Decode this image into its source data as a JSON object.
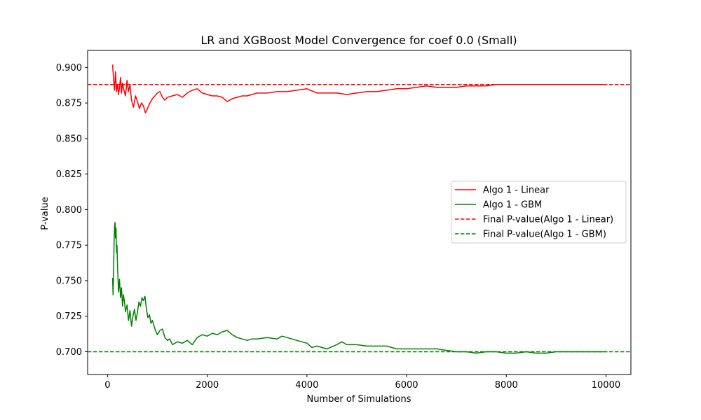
{
  "chart_data": {
    "type": "line",
    "title": "LR and XGBoost Model Convergence for coef 0.0 (Small)",
    "xlabel": "Number of Simulations",
    "ylabel": "P-value",
    "xlim": [
      -400,
      10500
    ],
    "ylim": [
      0.684,
      0.912
    ],
    "xticks": [
      0,
      2000,
      4000,
      6000,
      8000,
      10000
    ],
    "xtick_labels": [
      "0",
      "2000",
      "4000",
      "6000",
      "8000",
      "10000"
    ],
    "yticks": [
      0.7,
      0.725,
      0.75,
      0.775,
      0.8,
      0.825,
      0.85,
      0.875,
      0.9
    ],
    "ytick_labels": [
      "0.700",
      "0.725",
      "0.750",
      "0.775",
      "0.800",
      "0.825",
      "0.850",
      "0.875",
      "0.900"
    ],
    "grid": false,
    "legend_position": "center-right",
    "series": [
      {
        "name": "Algo 1 - Linear",
        "style": "solid",
        "color": "#ff0000",
        "x": [
          100,
          120,
          140,
          160,
          180,
          200,
          220,
          240,
          260,
          280,
          300,
          330,
          360,
          390,
          420,
          450,
          480,
          520,
          560,
          600,
          640,
          680,
          720,
          760,
          800,
          850,
          900,
          950,
          1000,
          1050,
          1100,
          1150,
          1200,
          1300,
          1400,
          1500,
          1600,
          1700,
          1800,
          1900,
          2000,
          2100,
          2200,
          2300,
          2400,
          2500,
          2600,
          2700,
          2800,
          2900,
          3000,
          3200,
          3400,
          3600,
          3800,
          4000,
          4200,
          4400,
          4600,
          4800,
          5000,
          5200,
          5400,
          5600,
          5800,
          6000,
          6200,
          6400,
          6600,
          6800,
          7000,
          7200,
          7400,
          7600,
          7800,
          8000,
          8200,
          8400,
          8600,
          8800,
          9000,
          9200,
          9400,
          9600,
          9800,
          10000
        ],
        "y": [
          0.902,
          0.892,
          0.884,
          0.897,
          0.883,
          0.888,
          0.881,
          0.886,
          0.893,
          0.882,
          0.889,
          0.884,
          0.88,
          0.891,
          0.883,
          0.888,
          0.877,
          0.872,
          0.88,
          0.876,
          0.871,
          0.875,
          0.873,
          0.868,
          0.871,
          0.875,
          0.878,
          0.88,
          0.882,
          0.883,
          0.879,
          0.877,
          0.879,
          0.88,
          0.881,
          0.879,
          0.882,
          0.884,
          0.885,
          0.882,
          0.881,
          0.88,
          0.88,
          0.879,
          0.876,
          0.878,
          0.879,
          0.88,
          0.88,
          0.881,
          0.882,
          0.882,
          0.883,
          0.883,
          0.884,
          0.885,
          0.882,
          0.882,
          0.882,
          0.881,
          0.882,
          0.883,
          0.883,
          0.884,
          0.885,
          0.885,
          0.886,
          0.887,
          0.886,
          0.886,
          0.886,
          0.887,
          0.887,
          0.887,
          0.888,
          0.888,
          0.888,
          0.888,
          0.888,
          0.888,
          0.888,
          0.888,
          0.888,
          0.888,
          0.888,
          0.888
        ]
      },
      {
        "name": "Algo 1 - GBM",
        "style": "solid",
        "color": "#008000",
        "x": [
          100,
          110,
          120,
          130,
          140,
          150,
          160,
          170,
          180,
          190,
          200,
          220,
          240,
          260,
          280,
          300,
          320,
          340,
          360,
          390,
          420,
          450,
          480,
          510,
          540,
          570,
          600,
          630,
          660,
          690,
          720,
          750,
          780,
          810,
          840,
          870,
          900,
          950,
          1000,
          1050,
          1100,
          1150,
          1200,
          1250,
          1300,
          1400,
          1500,
          1600,
          1700,
          1800,
          1900,
          2000,
          2100,
          2200,
          2300,
          2400,
          2500,
          2600,
          2700,
          2800,
          2900,
          3000,
          3200,
          3400,
          3500,
          3600,
          3800,
          4000,
          4100,
          4200,
          4400,
          4600,
          4700,
          4800,
          5000,
          5200,
          5400,
          5600,
          5800,
          6000,
          6200,
          6400,
          6600,
          6800,
          7000,
          7200,
          7400,
          7600,
          7800,
          8000,
          8200,
          8400,
          8600,
          8800,
          9000,
          9200,
          9400,
          9600,
          9800,
          10000
        ],
        "y": [
          0.752,
          0.74,
          0.755,
          0.775,
          0.788,
          0.791,
          0.78,
          0.787,
          0.77,
          0.775,
          0.76,
          0.742,
          0.751,
          0.738,
          0.745,
          0.732,
          0.74,
          0.735,
          0.728,
          0.733,
          0.722,
          0.729,
          0.718,
          0.725,
          0.73,
          0.722,
          0.728,
          0.735,
          0.732,
          0.738,
          0.736,
          0.739,
          0.73,
          0.724,
          0.726,
          0.72,
          0.722,
          0.716,
          0.712,
          0.715,
          0.716,
          0.71,
          0.708,
          0.709,
          0.705,
          0.707,
          0.706,
          0.708,
          0.705,
          0.71,
          0.712,
          0.711,
          0.713,
          0.712,
          0.714,
          0.715,
          0.712,
          0.71,
          0.709,
          0.708,
          0.709,
          0.709,
          0.71,
          0.709,
          0.711,
          0.71,
          0.708,
          0.706,
          0.703,
          0.704,
          0.702,
          0.705,
          0.707,
          0.705,
          0.705,
          0.704,
          0.704,
          0.704,
          0.702,
          0.702,
          0.702,
          0.702,
          0.702,
          0.701,
          0.7,
          0.7,
          0.699,
          0.7,
          0.7,
          0.699,
          0.699,
          0.7,
          0.699,
          0.699,
          0.7,
          0.7,
          0.7,
          0.7,
          0.7,
          0.7
        ]
      },
      {
        "name": "Final P-value(Algo 1 - Linear)",
        "style": "dashed",
        "color": "#ff0000",
        "hline": 0.888
      },
      {
        "name": "Final P-value(Algo 1 - GBM)",
        "style": "dashed",
        "color": "#008000",
        "hline": 0.7
      }
    ]
  }
}
